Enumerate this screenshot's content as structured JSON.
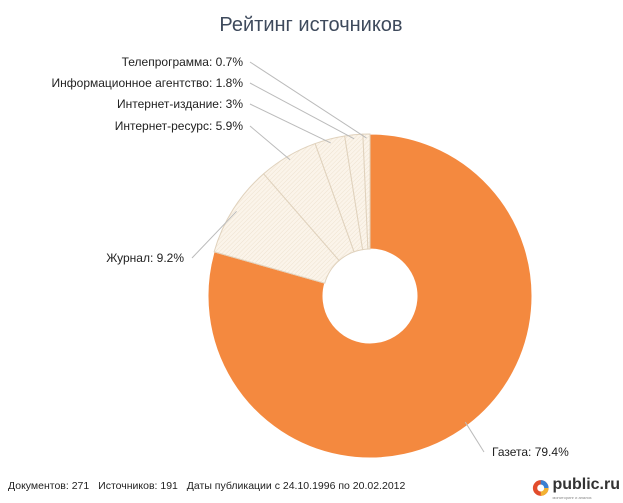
{
  "chart_data": {
    "type": "pie",
    "title": "Рейтинг источников",
    "slices": [
      {
        "label": "Газета: 79.4%",
        "value": 79.4,
        "color": "#f4893f"
      },
      {
        "label": "Журнал: 9.2%",
        "value": 9.2,
        "color": "#fbf5ec"
      },
      {
        "label": "Интернет-ресурс: 5.9%",
        "value": 5.9,
        "color": "#fbf5ec"
      },
      {
        "label": "Интернет-издание: 3%",
        "value": 3.0,
        "color": "#fbf5ec"
      },
      {
        "label": "Информационное агентство: 1.8%",
        "value": 1.8,
        "color": "#fbf5ec"
      },
      {
        "label": "Телепрограмма: 0.7%",
        "value": 0.7,
        "color": "#fbf5ec"
      }
    ]
  },
  "footer": {
    "documents": "Документов: 271",
    "sources": "Источников: 191",
    "dates": "Даты публикации с 24.10.1996 по 20.02.2012"
  },
  "logo": {
    "text": "public.ru",
    "tagline": "мониторинг и анализ"
  }
}
